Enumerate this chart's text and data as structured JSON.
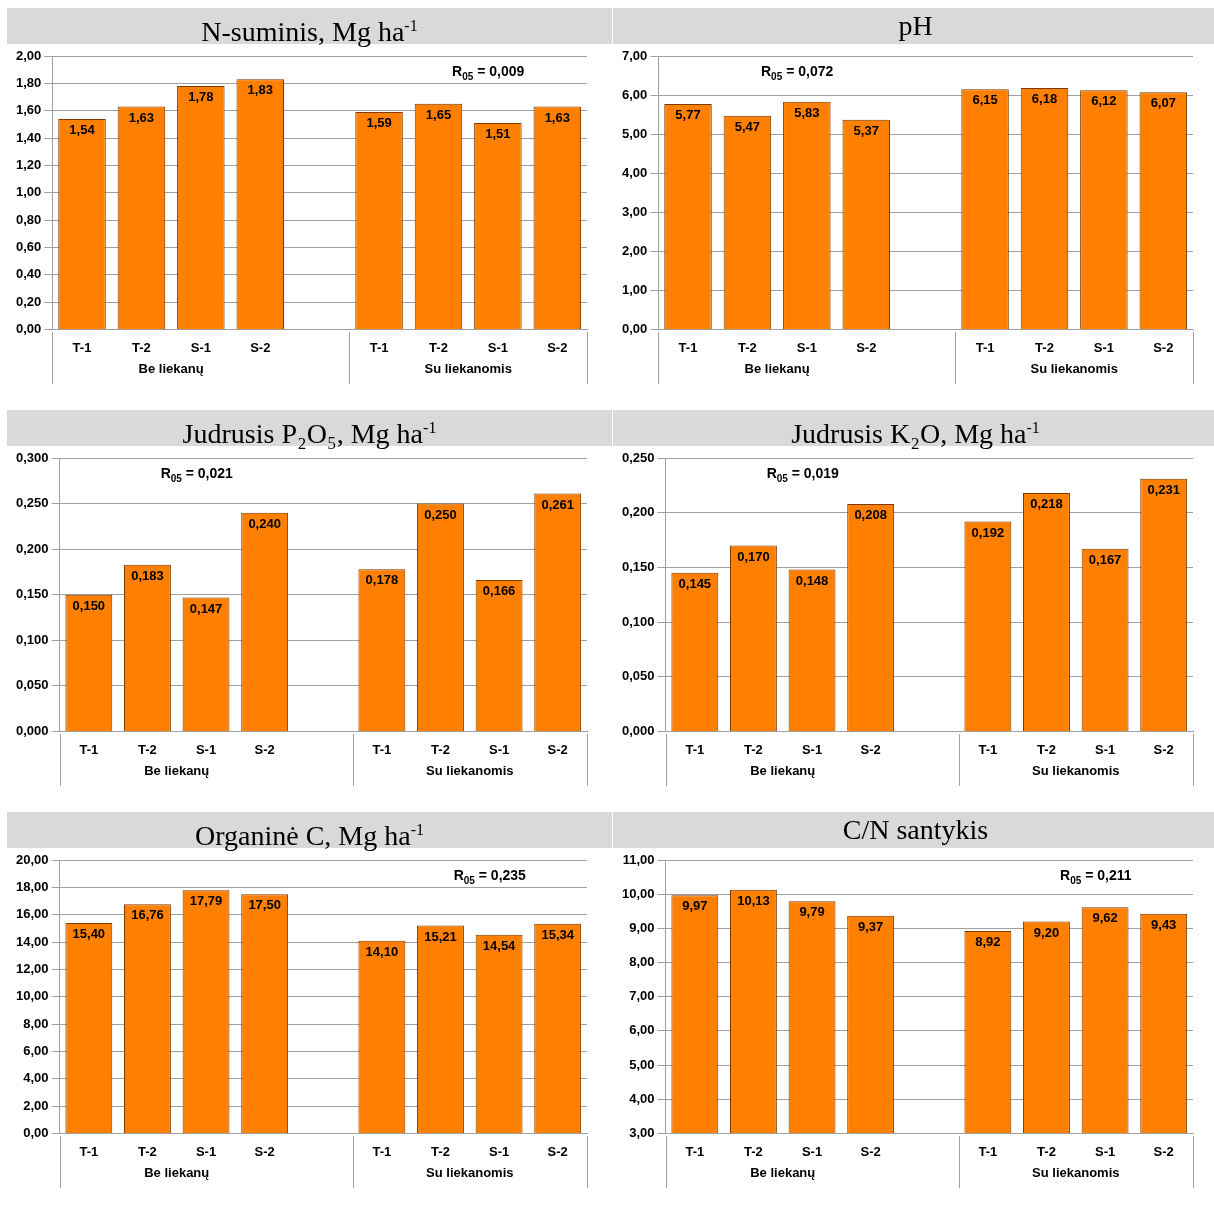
{
  "chart_data": [
    {
      "type": "bar",
      "title": "N-suminis, Mg ha$^{-1}$",
      "categories": [
        "T-1",
        "T-2",
        "S-1",
        "S-2",
        null,
        "T-1",
        "T-2",
        "S-1",
        "S-2"
      ],
      "values": [
        1.54,
        1.63,
        1.78,
        1.83,
        null,
        1.59,
        1.65,
        1.51,
        1.63
      ],
      "value_labels": [
        "1,54",
        "1,63",
        "1,78",
        "1,83",
        null,
        "1,59",
        "1,65",
        "1,51",
        "1,63"
      ],
      "color": "#ff8000",
      "ylim": [
        0,
        2
      ],
      "yticks": [
        {
          "value": 0,
          "label": "0,00"
        },
        {
          "value": 0.2,
          "label": "0,20"
        },
        {
          "value": 0.4,
          "label": "0,40"
        },
        {
          "value": 0.6,
          "label": "0,60"
        },
        {
          "value": 0.8,
          "label": "0,80"
        },
        {
          "value": 1,
          "label": "1,00"
        },
        {
          "value": 1.2,
          "label": "1,20"
        },
        {
          "value": 1.4,
          "label": "1,40"
        },
        {
          "value": 1.6,
          "label": "1,60"
        },
        {
          "value": 1.8,
          "label": "1,80"
        },
        {
          "value": 2,
          "label": "2,00"
        }
      ],
      "grid": "y",
      "legend": false,
      "annotations": [
        "Be liekanų",
        "Su liekanomis",
        "R$_{05}$ = 0,009"
      ]
    },
    {
      "type": "bar",
      "title": "pH",
      "categories": [
        "T-1",
        "T-2",
        "S-1",
        "S-2",
        null,
        "T-1",
        "T-2",
        "S-1",
        "S-2"
      ],
      "values": [
        5.77,
        5.47,
        5.83,
        5.37,
        null,
        6.15,
        6.18,
        6.12,
        6.07
      ],
      "value_labels": [
        "5,77",
        "5,47",
        "5,83",
        "5,37",
        null,
        "6,15",
        "6,18",
        "6,12",
        "6,07"
      ],
      "color": "#ff8000",
      "ylim": [
        0,
        7
      ],
      "yticks": [
        {
          "value": 0,
          "label": "0,00"
        },
        {
          "value": 1,
          "label": "1,00"
        },
        {
          "value": 2,
          "label": "2,00"
        },
        {
          "value": 3,
          "label": "3,00"
        },
        {
          "value": 4,
          "label": "4,00"
        },
        {
          "value": 5,
          "label": "5,00"
        },
        {
          "value": 6,
          "label": "6,00"
        },
        {
          "value": 7,
          "label": "7,00"
        }
      ],
      "grid": "y",
      "legend": false,
      "annotations": [
        "Be liekanų",
        "Su liekanomis",
        "R$_{05}$ = 0,072"
      ]
    },
    {
      "type": "bar",
      "title": "Judrusis P₂O₅, Mg ha$^{-1}$",
      "categories": [
        "T-1",
        "T-2",
        "S-1",
        "S-2",
        null,
        "T-1",
        "T-2",
        "S-1",
        "S-2"
      ],
      "values": [
        0.15,
        0.183,
        0.147,
        0.24,
        null,
        0.178,
        0.25,
        0.166,
        0.261
      ],
      "value_labels": [
        "0,150",
        "0,183",
        "0,147",
        "0,240",
        null,
        "0,178",
        "0,250",
        "0,166",
        "0,261"
      ],
      "color": "#ff8000",
      "ylim": [
        0,
        0.3
      ],
      "yticks": [
        {
          "value": 0,
          "label": "0,000"
        },
        {
          "value": 0.05,
          "label": "0,050"
        },
        {
          "value": 0.1,
          "label": "0,100"
        },
        {
          "value": 0.15,
          "label": "0,150"
        },
        {
          "value": 0.2,
          "label": "0,200"
        },
        {
          "value": 0.25,
          "label": "0,250"
        },
        {
          "value": 0.3,
          "label": "0,300"
        }
      ],
      "grid": "y",
      "legend": false,
      "annotations": [
        "Be liekanų",
        "Su liekanomis",
        "R$_{05}$ = 0,021"
      ]
    },
    {
      "type": "bar",
      "title": "Judrusis K₂O, Mg ha$^{-1}$",
      "categories": [
        "T-1",
        "T-2",
        "S-1",
        "S-2",
        null,
        "T-1",
        "T-2",
        "S-1",
        "S-2"
      ],
      "values": [
        0.145,
        0.17,
        0.148,
        0.208,
        null,
        0.192,
        0.218,
        0.167,
        0.231
      ],
      "value_labels": [
        "0,145",
        "0,170",
        "0,148",
        "0,208",
        null,
        "0,192",
        "0,218",
        "0,167",
        "0,231"
      ],
      "color": "#ff8000",
      "ylim": [
        0,
        0.25
      ],
      "yticks": [
        {
          "value": 0,
          "label": "0,000"
        },
        {
          "value": 0.05,
          "label": "0,050"
        },
        {
          "value": 0.1,
          "label": "0,100"
        },
        {
          "value": 0.15,
          "label": "0,150"
        },
        {
          "value": 0.2,
          "label": "0,200"
        },
        {
          "value": 0.25,
          "label": "0,250"
        }
      ],
      "grid": "y",
      "legend": false,
      "annotations": [
        "Be liekanų",
        "Su liekanomis",
        "R$_{05}$ = 0,019"
      ]
    },
    {
      "type": "bar",
      "title": "Organinė C, Mg ha$^{-1}$",
      "categories": [
        "T-1",
        "T-2",
        "S-1",
        "S-2",
        null,
        "T-1",
        "T-2",
        "S-1",
        "S-2"
      ],
      "values": [
        15.4,
        16.76,
        17.79,
        17.5,
        null,
        14.1,
        15.21,
        14.54,
        15.34
      ],
      "value_labels": [
        "15,40",
        "16,76",
        "17,79",
        "17,50",
        null,
        "14,10",
        "15,21",
        "14,54",
        "15,34"
      ],
      "color": "#ff8000",
      "ylim": [
        0,
        20
      ],
      "yticks": [
        {
          "value": 0,
          "label": "0,00"
        },
        {
          "value": 2,
          "label": "2,00"
        },
        {
          "value": 4,
          "label": "4,00"
        },
        {
          "value": 6,
          "label": "6,00"
        },
        {
          "value": 8,
          "label": "8,00"
        },
        {
          "value": 10,
          "label": "10,00"
        },
        {
          "value": 12,
          "label": "12,00"
        },
        {
          "value": 14,
          "label": "14,00"
        },
        {
          "value": 16,
          "label": "16,00"
        },
        {
          "value": 18,
          "label": "18,00"
        },
        {
          "value": 20,
          "label": "20,00"
        }
      ],
      "grid": "y",
      "legend": false,
      "annotations": [
        "Be liekanų",
        "Su liekanomis",
        "R$_{05}$ = 0,235"
      ]
    },
    {
      "type": "bar",
      "title": "C/N santykis",
      "categories": [
        "T-1",
        "T-2",
        "S-1",
        "S-2",
        null,
        "T-1",
        "T-2",
        "S-1",
        "S-2"
      ],
      "values": [
        9.97,
        10.13,
        9.79,
        9.37,
        null,
        8.92,
        9.2,
        9.62,
        9.43
      ],
      "value_labels": [
        "9,97",
        "10,13",
        "9,79",
        "9,37",
        null,
        "8,92",
        "9,20",
        "9,62",
        "9,43"
      ],
      "color": "#ff8000",
      "ylim": [
        3,
        11
      ],
      "yticks": [
        {
          "value": 3,
          "label": "3,00"
        },
        {
          "value": 4,
          "label": "4,00"
        },
        {
          "value": 5,
          "label": "5,00"
        },
        {
          "value": 6,
          "label": "6,00"
        },
        {
          "value": 7,
          "label": "7,00"
        },
        {
          "value": 8,
          "label": "8,00"
        },
        {
          "value": 9,
          "label": "9,00"
        },
        {
          "value": 10,
          "label": "10,00"
        },
        {
          "value": 11,
          "label": "11,00"
        }
      ],
      "grid": "y",
      "legend": false,
      "annotations": [
        "Be liekanų",
        "Su liekanomis",
        "R$_{05}$ = 0,211"
      ]
    }
  ]
}
